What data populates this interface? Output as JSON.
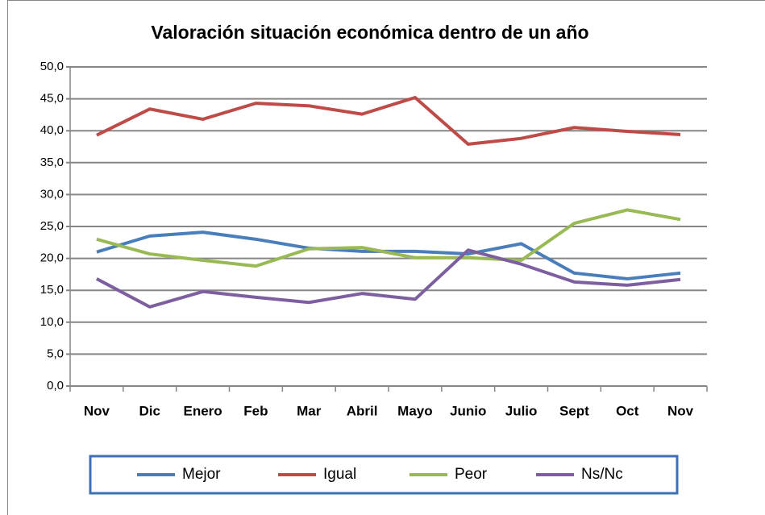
{
  "chart_data": {
    "type": "line",
    "title": "Valoración situación económica dentro de un año",
    "categories": [
      "Nov",
      "Dic",
      "Enero",
      "Feb",
      "Mar",
      "Abril",
      "Mayo",
      "Junio",
      "Julio",
      "Sept",
      "Oct",
      "Nov"
    ],
    "series": [
      {
        "name": "Mejor",
        "color": "#4a7ebb",
        "values": [
          21.0,
          23.5,
          24.1,
          23.0,
          21.6,
          21.1,
          21.1,
          20.7,
          22.3,
          17.7,
          16.8,
          17.7
        ]
      },
      {
        "name": "Igual",
        "color": "#be4b48",
        "values": [
          39.3,
          43.4,
          41.8,
          44.3,
          43.9,
          42.6,
          45.2,
          37.9,
          38.8,
          40.5,
          39.9,
          39.4
        ]
      },
      {
        "name": "Peor",
        "color": "#98b954",
        "values": [
          23.0,
          20.7,
          19.7,
          18.8,
          21.5,
          21.7,
          20.1,
          20.1,
          19.7,
          25.5,
          27.6,
          26.1
        ]
      },
      {
        "name": "Ns/Nc",
        "color": "#7d5fa0",
        "values": [
          16.8,
          12.4,
          14.8,
          13.9,
          13.1,
          14.5,
          13.6,
          21.3,
          19.1,
          16.3,
          15.8,
          16.7
        ]
      }
    ],
    "ylim": [
      0,
      50
    ],
    "yticks": [
      {
        "value": 0,
        "label": "0,0"
      },
      {
        "value": 5,
        "label": "5,0"
      },
      {
        "value": 10,
        "label": "10,0"
      },
      {
        "value": 15,
        "label": "15,0"
      },
      {
        "value": 20,
        "label": "20,0"
      },
      {
        "value": 25,
        "label": "25,0"
      },
      {
        "value": 30,
        "label": "30,0"
      },
      {
        "value": 35,
        "label": "35,0"
      },
      {
        "value": 40,
        "label": "40,0"
      },
      {
        "value": 45,
        "label": "45,0"
      },
      {
        "value": 50,
        "label": "50,0"
      }
    ],
    "grid": true,
    "legend": "bottom"
  }
}
